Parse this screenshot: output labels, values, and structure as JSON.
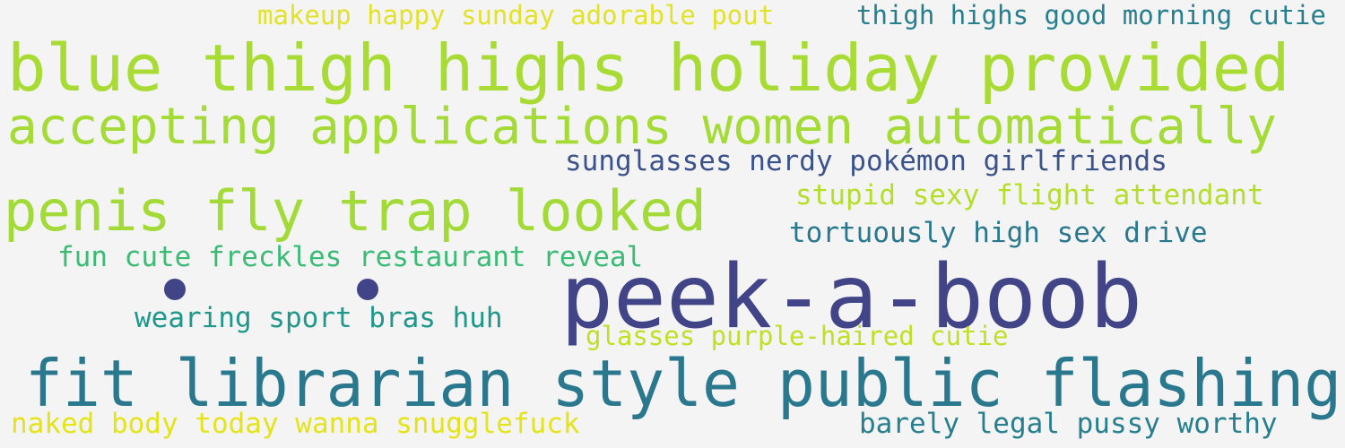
{
  "cloud": {
    "background": "#f4f4f4",
    "phrases": [
      {
        "id": "p1",
        "text": "makeup happy sunday adorable pout",
        "color": "#e2e22a"
      },
      {
        "id": "p2",
        "text": "thigh highs good morning cutie",
        "color": "#277f8e"
      },
      {
        "id": "p3",
        "text": "blue thigh highs holiday provided",
        "color": "#a8db34"
      },
      {
        "id": "p4",
        "text": "accepting applications women automatically",
        "color": "#a5db36"
      },
      {
        "id": "p5",
        "text": "sunglasses nerdy pokémon girlfriends",
        "color": "#3b528b"
      },
      {
        "id": "p6",
        "text": "stupid sexy flight attendant",
        "color": "#b5de2b"
      },
      {
        "id": "p7",
        "text": "penis fly trap looked",
        "color": "#a2da37"
      },
      {
        "id": "p8",
        "text": "tortuously high sex drive",
        "color": "#2a788e"
      },
      {
        "id": "p9",
        "text": "fun cute freckles restaurant reveal",
        "color": "#3bbb75"
      },
      {
        "id": "p10",
        "text": "peek-a-boob",
        "color": "#414487"
      },
      {
        "id": "p11",
        "text": "wearing sport bras huh",
        "color": "#1f978b"
      },
      {
        "id": "p12",
        "text": "glasses purple-haired cutie",
        "color": "#c0df25"
      },
      {
        "id": "p13",
        "text": "fit librarian style public flashing",
        "color": "#2a788e"
      },
      {
        "id": "p14",
        "text": "naked body today wanna snugglefuck",
        "color": "#e5e419"
      },
      {
        "id": "p15",
        "text": "barely legal pussy worthy",
        "color": "#277f8e"
      }
    ],
    "dots": [
      {
        "id": "d1",
        "color": "#414487"
      },
      {
        "id": "d2",
        "color": "#414487"
      }
    ]
  }
}
